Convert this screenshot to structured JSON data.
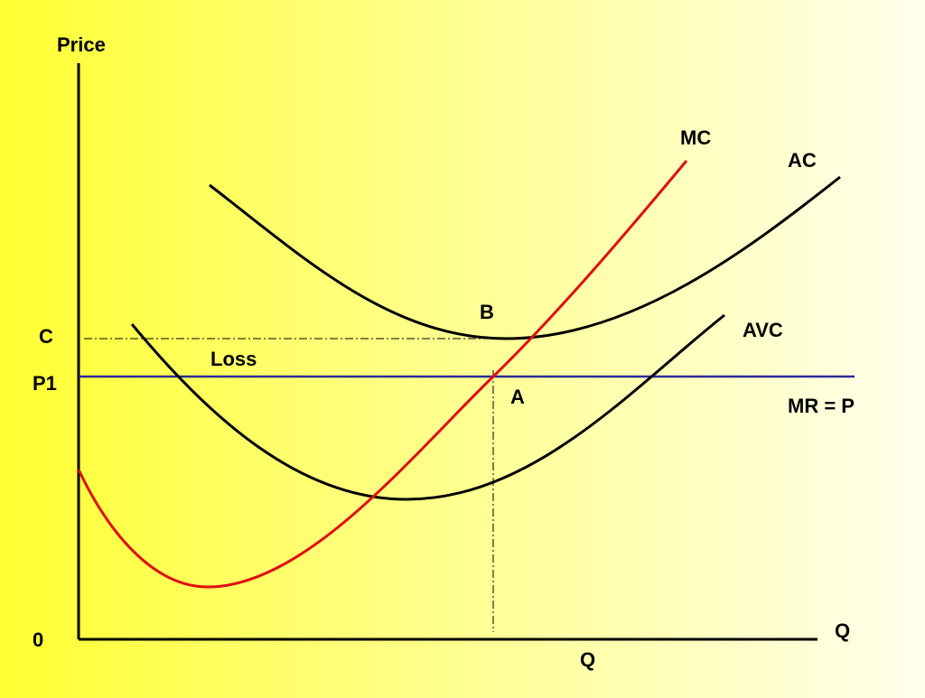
{
  "diagram": {
    "y_axis_label": "Price",
    "x_axis_label": "Q",
    "origin_label": "0",
    "price_labels": {
      "c": "C",
      "p1": "P1"
    },
    "quantity_label": "Q",
    "curves": {
      "mc": {
        "label": "MC",
        "color": "#e01010"
      },
      "ac": {
        "label": "AC",
        "color": "#000000"
      },
      "avc": {
        "label": "AVC",
        "color": "#000000"
      },
      "mr": {
        "label": "MR = P",
        "color": "#2a2a9a"
      }
    },
    "points": {
      "b": "B",
      "a": "A"
    },
    "region_label": "Loss"
  }
}
